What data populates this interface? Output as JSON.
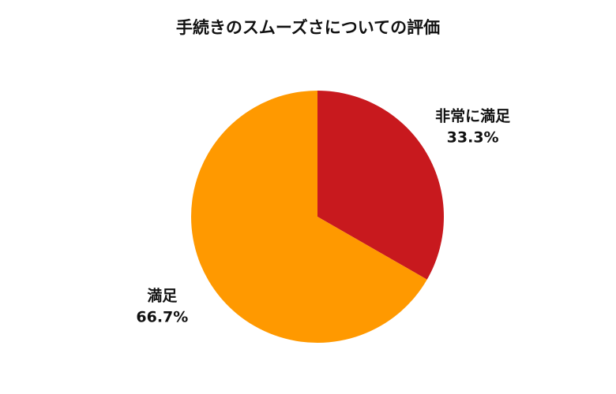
{
  "chart_data": {
    "type": "pie",
    "title": "手続きのスムーズさについての評価",
    "categories": [
      "非常に満足",
      "満足"
    ],
    "values": [
      33.3,
      66.7
    ],
    "value_labels": [
      "33.3%",
      "66.7%"
    ],
    "colors": [
      "#c8191e",
      "#ff9900"
    ]
  }
}
